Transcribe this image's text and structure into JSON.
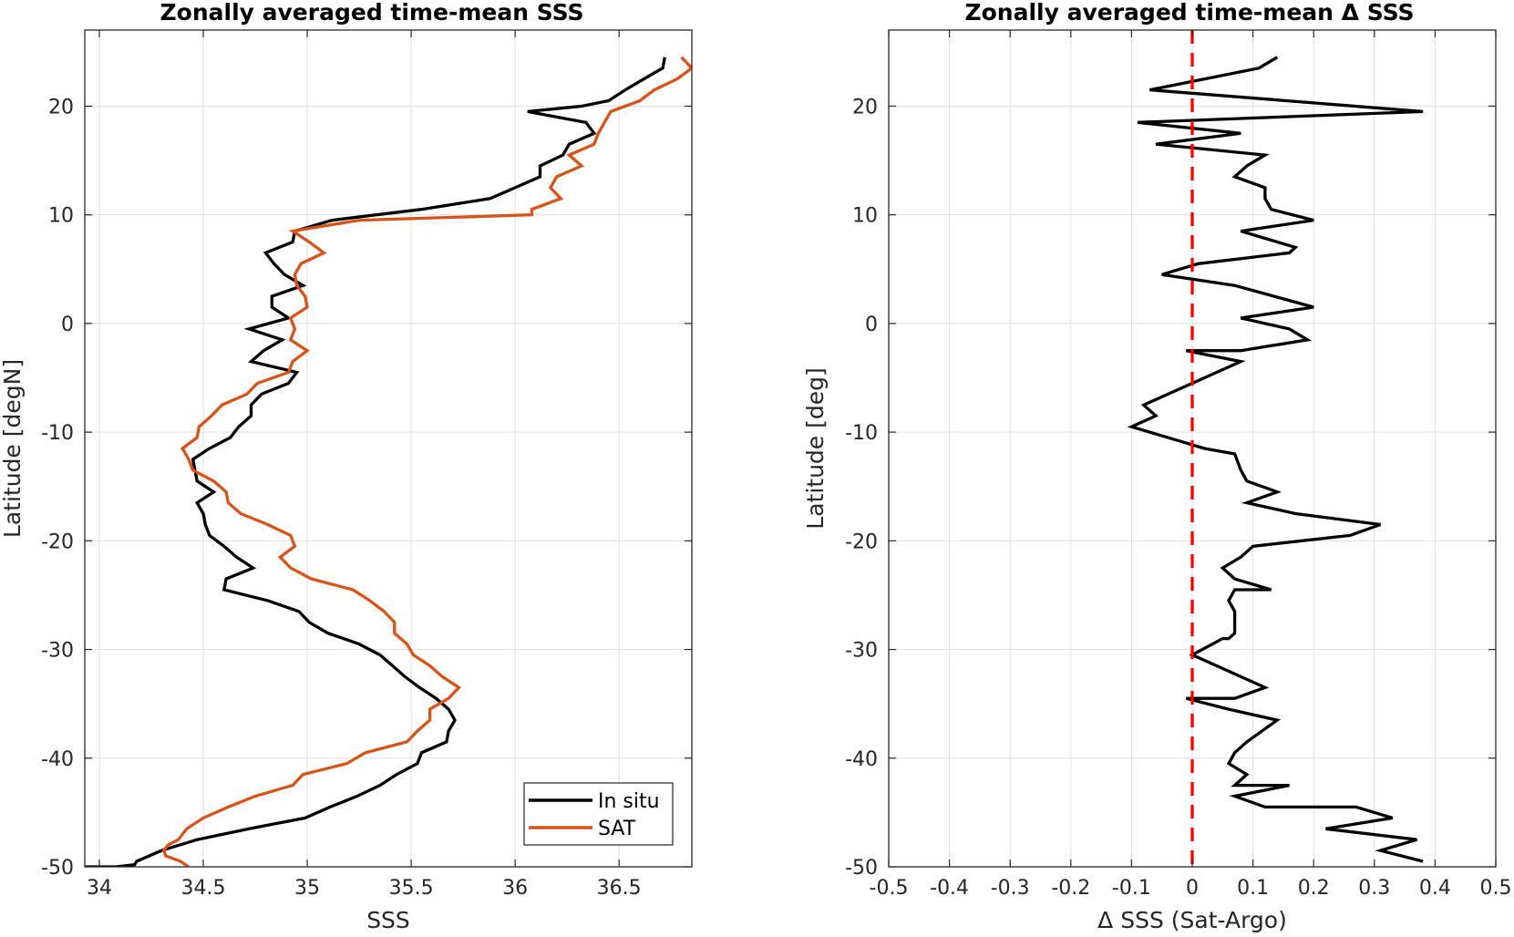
{
  "chart_data": [
    {
      "type": "line",
      "title": "Zonally averaged time-mean SSS",
      "xlabel": "SSS",
      "ylabel": "Latitude [degN]",
      "xlim": [
        33.93,
        36.85
      ],
      "ylim": [
        -50,
        27
      ],
      "xticks": [
        34,
        34.5,
        35,
        35.5,
        36,
        36.5
      ],
      "xtick_labels": [
        "34",
        "34.5",
        "35",
        "35.5",
        "36",
        "36.5"
      ],
      "yticks": [
        -50,
        -40,
        -30,
        -20,
        -10,
        0,
        10,
        20
      ],
      "ytick_labels": [
        "-50",
        "-40",
        "-30",
        "-20",
        "-10",
        "0",
        "10",
        "20"
      ],
      "grid": true,
      "legend_position": "bottom-right",
      "series": [
        {
          "name": "In situ",
          "color": "#000000",
          "x": [
            36.72,
            36.71,
            36.62,
            36.53,
            36.45,
            36.32,
            36.06,
            36.34,
            36.38,
            36.26,
            36.23,
            36.12,
            36.12,
            36.0,
            35.88,
            35.55,
            35.12,
            34.94,
            34.93,
            34.8,
            34.84,
            34.89,
            34.98,
            34.83,
            34.83,
            34.91,
            34.72,
            34.88,
            34.79,
            34.73,
            34.95,
            34.91,
            34.78,
            34.73,
            34.73,
            34.67,
            34.63,
            34.53,
            34.45,
            34.46,
            34.47,
            34.55,
            34.47,
            34.5,
            34.51,
            34.53,
            34.6,
            34.66,
            34.74,
            34.61,
            34.6,
            34.81,
            34.96,
            35.01,
            35.1,
            35.25,
            35.35,
            35.41,
            35.47,
            35.54,
            35.62,
            35.68,
            35.71,
            35.68,
            35.67,
            35.55,
            35.53,
            35.43,
            35.35,
            35.24,
            35.11,
            34.99,
            34.72,
            34.47,
            34.3,
            34.18,
            34.17,
            34.08,
            34.03,
            33.93
          ],
          "y": [
            24.5,
            23.5,
            22.5,
            21.5,
            20.5,
            20.0,
            19.5,
            18.5,
            17.5,
            16.5,
            15.5,
            14.5,
            13.5,
            12.5,
            11.5,
            10.5,
            9.5,
            8.5,
            7.5,
            6.5,
            5.5,
            4.5,
            3.5,
            2.5,
            1.5,
            0.5,
            -0.5,
            -1.5,
            -2.5,
            -3.5,
            -4.5,
            -5.5,
            -6.5,
            -7.5,
            -8.5,
            -9.5,
            -10.5,
            -11.5,
            -12.5,
            -13.5,
            -14.5,
            -15.5,
            -16.5,
            -17.5,
            -18.5,
            -19.5,
            -20.5,
            -21.5,
            -22.5,
            -23.5,
            -24.5,
            -25.5,
            -26.5,
            -27.5,
            -28.5,
            -29.5,
            -30.5,
            -31.5,
            -32.5,
            -33.5,
            -34.5,
            -35.5,
            -36.5,
            -37.5,
            -38.5,
            -39.5,
            -40.5,
            -41.5,
            -42.5,
            -43.5,
            -44.5,
            -45.5,
            -46.5,
            -47.5,
            -48.5,
            -49.5,
            -49.8,
            -50.0,
            -50.0,
            -50.0
          ]
        },
        {
          "name": "SAT",
          "color": "#d95319",
          "x": [
            36.8,
            36.85,
            36.78,
            36.67,
            36.6,
            36.46,
            36.43,
            36.4,
            36.38,
            36.26,
            36.32,
            36.2,
            36.17,
            36.22,
            36.08,
            36.08,
            35.25,
            34.93,
            35.01,
            35.08,
            34.97,
            34.94,
            34.95,
            34.99,
            35.0,
            34.92,
            34.94,
            34.92,
            35.0,
            34.93,
            34.91,
            34.76,
            34.71,
            34.59,
            34.54,
            34.48,
            34.47,
            34.4,
            34.43,
            34.45,
            34.55,
            34.61,
            34.62,
            34.68,
            34.81,
            34.92,
            34.94,
            34.87,
            34.92,
            35.02,
            35.22,
            35.3,
            35.37,
            35.42,
            35.42,
            35.48,
            35.51,
            35.59,
            35.65,
            35.73,
            35.68,
            35.59,
            35.59,
            35.53,
            35.48,
            35.28,
            35.19,
            34.98,
            34.93,
            34.75,
            34.62,
            34.5,
            34.42,
            34.38,
            34.33,
            34.31,
            34.32,
            34.39,
            34.43
          ],
          "y": [
            24.5,
            23.5,
            22.5,
            21.5,
            20.5,
            19.5,
            18.5,
            17.5,
            16.5,
            15.5,
            14.5,
            13.5,
            12.5,
            11.5,
            10.5,
            10.0,
            9.5,
            8.5,
            7.5,
            6.5,
            5.5,
            4.5,
            3.5,
            2.5,
            1.5,
            0.5,
            -0.5,
            -1.5,
            -2.5,
            -3.5,
            -4.5,
            -5.5,
            -6.5,
            -7.5,
            -8.5,
            -9.5,
            -10.5,
            -11.5,
            -12.5,
            -13.5,
            -14.5,
            -15.5,
            -16.5,
            -17.5,
            -18.5,
            -19.5,
            -20.5,
            -21.5,
            -22.5,
            -23.5,
            -24.5,
            -25.5,
            -26.5,
            -27.5,
            -28.5,
            -29.5,
            -30.5,
            -31.5,
            -32.5,
            -33.5,
            -34.5,
            -35.5,
            -36.5,
            -37.5,
            -38.5,
            -39.5,
            -40.5,
            -41.5,
            -42.5,
            -43.5,
            -44.5,
            -45.5,
            -46.5,
            -47.5,
            -48.0,
            -48.5,
            -49.0,
            -49.5,
            -50.0
          ]
        }
      ]
    },
    {
      "type": "line",
      "title": "Zonally averaged time-mean Δ SSS",
      "xlabel": "Δ SSS (Sat-Argo)",
      "ylabel": "Latitude [deg]",
      "xlim": [
        -0.5,
        0.5
      ],
      "ylim": [
        -50,
        27
      ],
      "xticks": [
        -0.5,
        -0.4,
        -0.3,
        -0.2,
        -0.1,
        0,
        0.1,
        0.2,
        0.3,
        0.4,
        0.5
      ],
      "xtick_labels": [
        "-0.5",
        "-0.4",
        "-0.3",
        "-0.2",
        "-0.1",
        "0",
        "0.1",
        "0.2",
        "0.3",
        "0.4",
        "0.5"
      ],
      "yticks": [
        -50,
        -40,
        -30,
        -20,
        -10,
        0,
        10,
        20
      ],
      "ytick_labels": [
        "-50",
        "-40",
        "-30",
        "-20",
        "-10",
        "0",
        "10",
        "20"
      ],
      "grid": true,
      "series": [
        {
          "color": "#000000",
          "x": [
            0.14,
            0.11,
            -0.07,
            0.38,
            -0.09,
            0.08,
            -0.06,
            0.12,
            0.09,
            0.07,
            0.12,
            0.12,
            0.13,
            0.2,
            0.08,
            0.17,
            0.16,
            0.01,
            -0.05,
            0.07,
            0.2,
            0.08,
            0.16,
            0.19,
            0.08,
            -0.01,
            0.08,
            0.0,
            -0.04,
            -0.08,
            -0.06,
            -0.1,
            -0.04,
            0.02,
            0.07,
            0.08,
            0.09,
            0.14,
            0.09,
            0.17,
            0.31,
            0.26,
            0.1,
            0.08,
            0.05,
            0.07,
            0.13,
            0.07,
            0.06,
            0.07,
            0.07,
            0.07,
            0.06,
            0.05,
            0.0,
            0.0,
            0.04,
            0.12,
            0.07,
            -0.01,
            0.06,
            0.14,
            0.09,
            0.07,
            0.06,
            0.09,
            0.07,
            0.16,
            0.07,
            0.12,
            0.27,
            0.33,
            0.22,
            0.37,
            0.31,
            0.38
          ],
          "y": [
            24.5,
            23.5,
            21.5,
            19.5,
            18.5,
            17.5,
            16.5,
            15.5,
            14.5,
            13.5,
            12.5,
            11.5,
            10.5,
            9.5,
            8.5,
            7.0,
            6.5,
            5.5,
            4.5,
            3.5,
            1.5,
            0.5,
            -0.5,
            -1.5,
            -2.5,
            -2.5,
            -3.5,
            -5.5,
            -6.5,
            -7.5,
            -8.5,
            -9.5,
            -10.5,
            -11.5,
            -12.0,
            -13.5,
            -14.5,
            -15.5,
            -16.5,
            -17.5,
            -18.5,
            -19.5,
            -20.5,
            -21.5,
            -22.5,
            -23.5,
            -24.5,
            -24.5,
            -25.5,
            -26.5,
            -27.5,
            -28.5,
            -29.0,
            -29.0,
            -30.5,
            -30.5,
            -31.5,
            -33.5,
            -34.5,
            -34.5,
            -35.5,
            -36.5,
            -38.5,
            -39.5,
            -40.5,
            -41.5,
            -42.5,
            -42.5,
            -43.5,
            -44.5,
            -44.5,
            -45.5,
            -46.5,
            -47.5,
            -48.5,
            -49.5
          ]
        }
      ],
      "reference_line": {
        "x": 0,
        "color": "#ff0000",
        "style": "dashed"
      }
    }
  ]
}
